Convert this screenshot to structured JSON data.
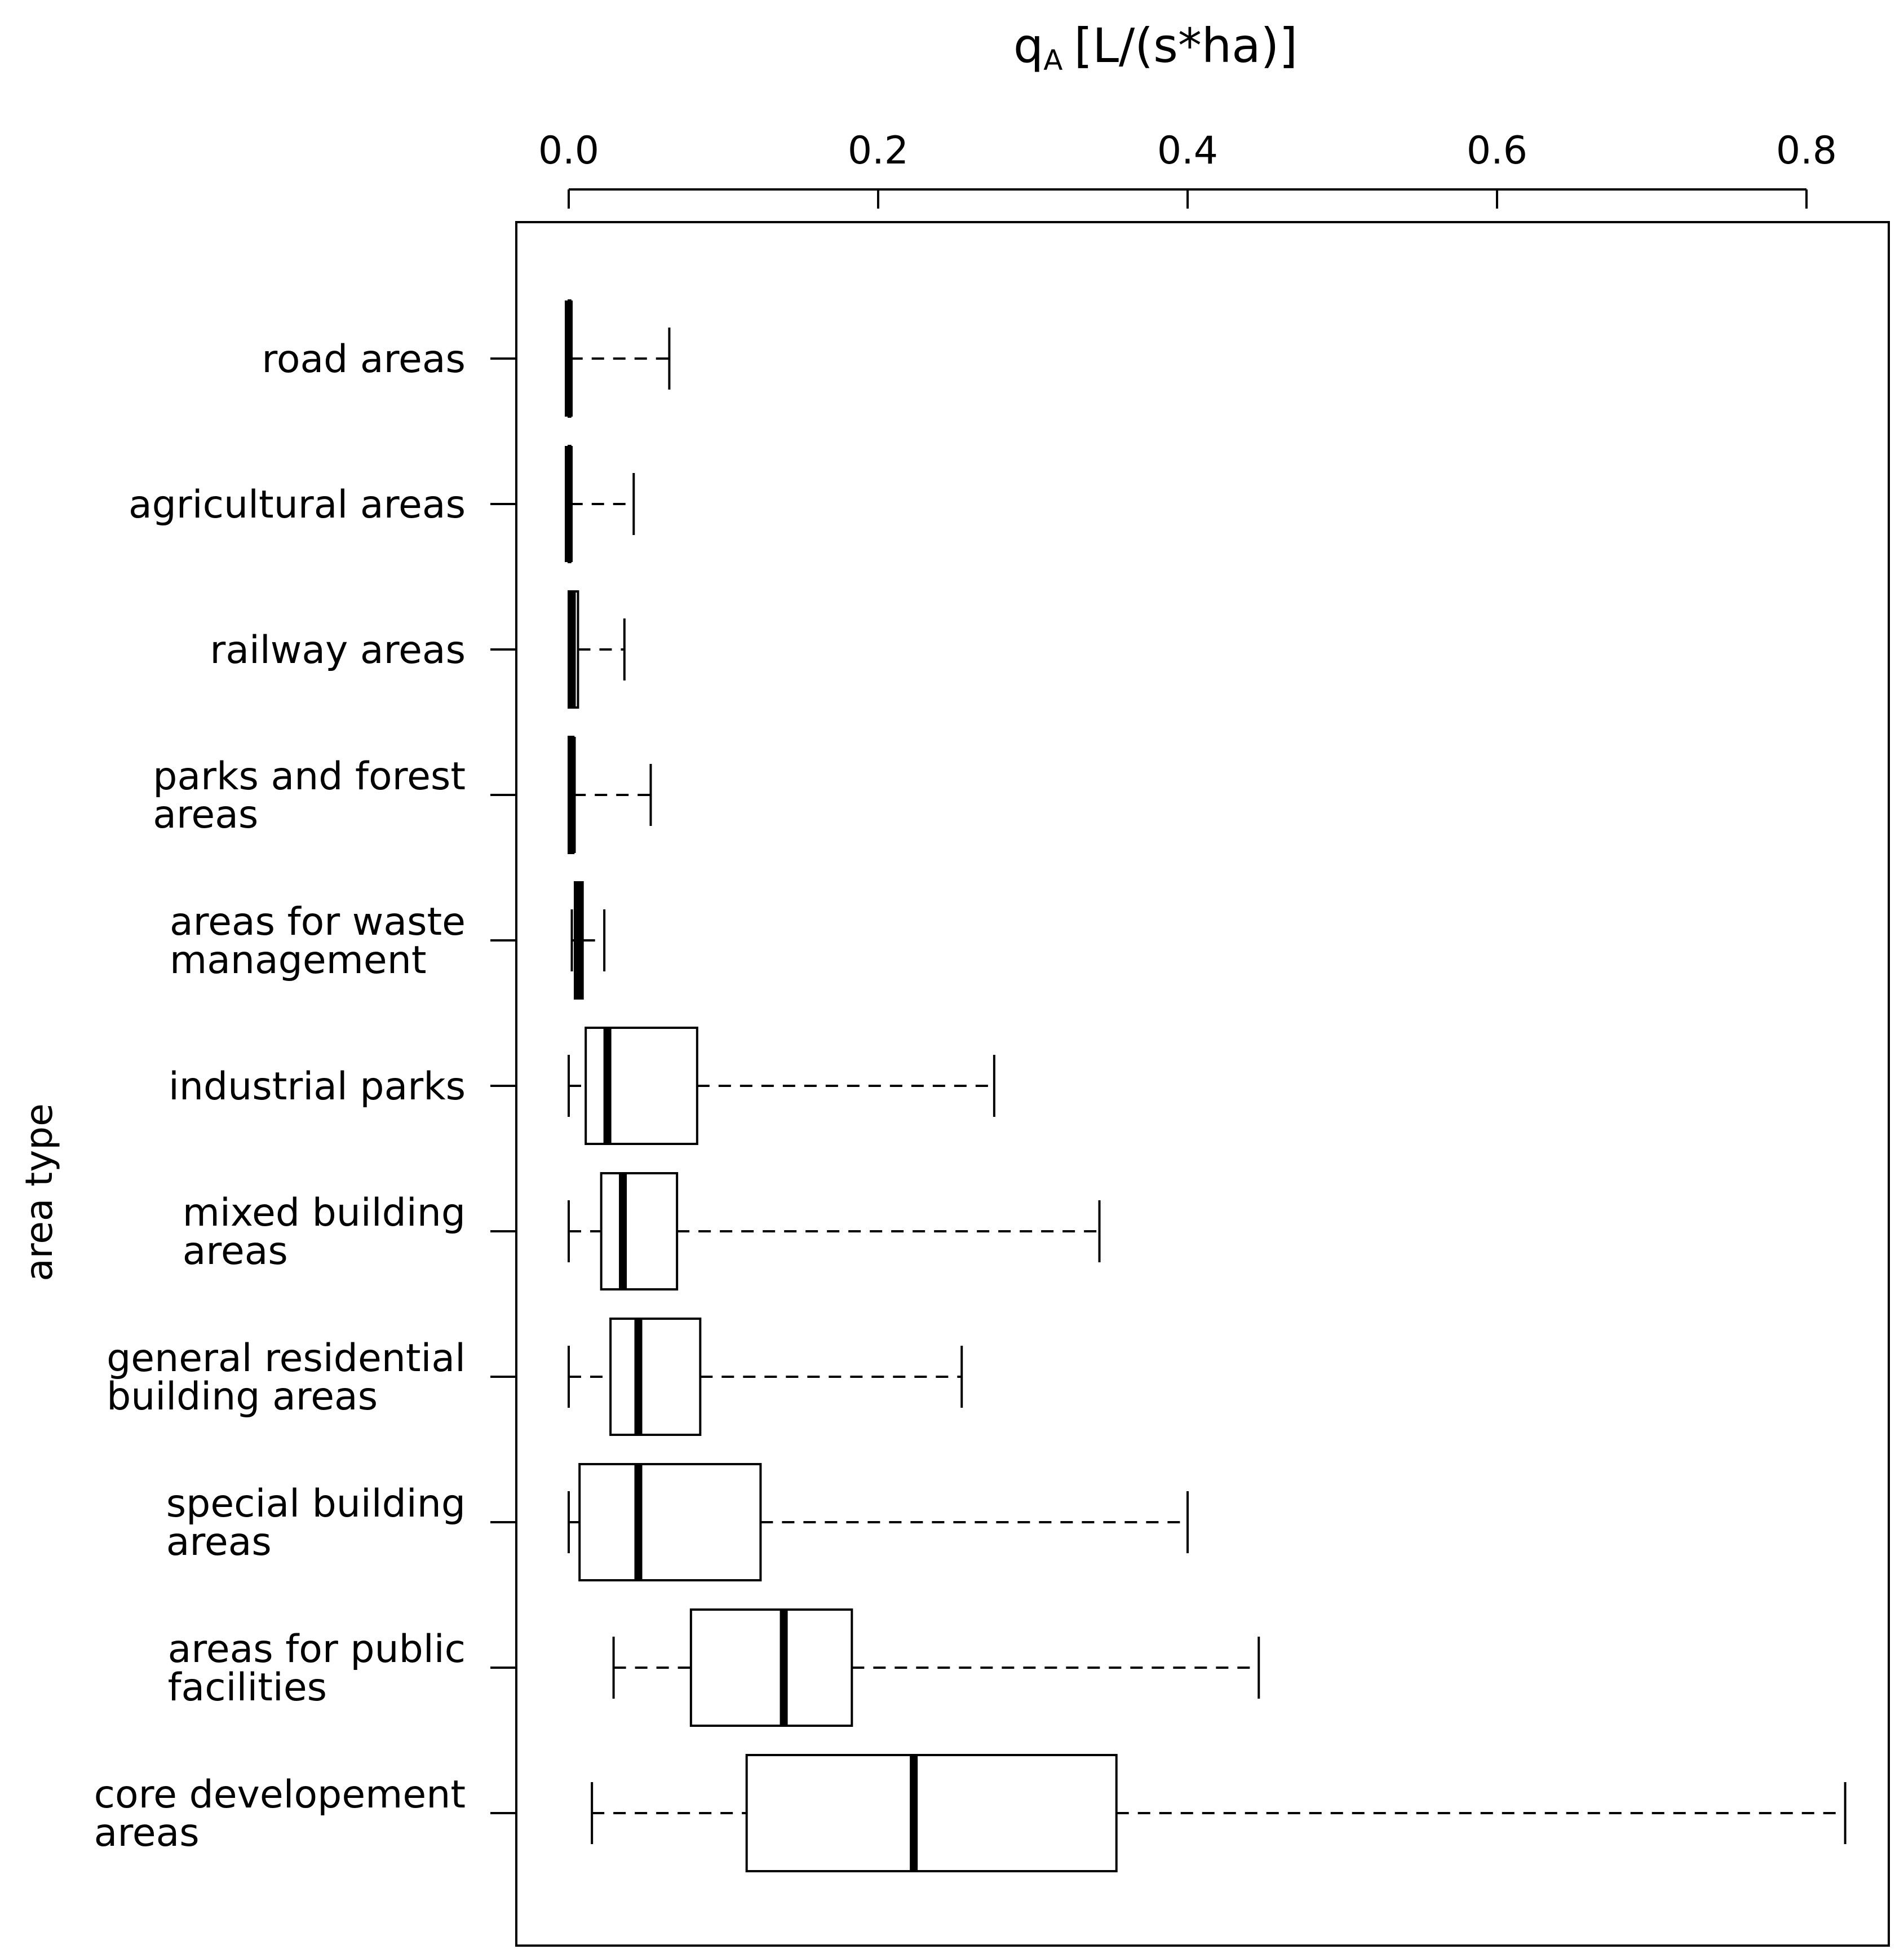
{
  "chart_data": {
    "type": "boxplot",
    "orientation": "horizontal",
    "xlabel": "q",
    "xlabel_subscript": "A",
    "xlabel_unit": "[L/(s*ha)]",
    "ylabel": "area type",
    "xlim": [
      -0.035,
      0.855
    ],
    "xticks": [
      0.0,
      0.2,
      0.4,
      0.6,
      0.8
    ],
    "xtick_labels": [
      "0.0",
      "0.2",
      "0.4",
      "0.6",
      "0.8"
    ],
    "x_axis_position": "top",
    "categories": [
      {
        "label": [
          "road areas"
        ],
        "whisker_low": 0.0,
        "q1": 0.0,
        "median": 0.0,
        "q3": 0.001,
        "whisker_high": 0.065
      },
      {
        "label": [
          "agricultural areas"
        ],
        "whisker_low": 0.0,
        "q1": 0.0,
        "median": 0.0,
        "q3": 0.001,
        "whisker_high": 0.042
      },
      {
        "label": [
          "railway areas"
        ],
        "whisker_low": 0.0,
        "q1": 0.0,
        "median": 0.002,
        "q3": 0.006,
        "whisker_high": 0.036
      },
      {
        "label": [
          "parks and forest",
          "areas"
        ],
        "whisker_low": 0.0,
        "q1": 0.0,
        "median": 0.002,
        "q3": 0.003,
        "whisker_high": 0.053
      },
      {
        "label": [
          "areas for waste",
          "management"
        ],
        "whisker_low": 0.002,
        "q1": 0.004,
        "median": 0.006,
        "q3": 0.009,
        "whisker_high": 0.023
      },
      {
        "label": [
          "industrial parks"
        ],
        "whisker_low": 0.0,
        "q1": 0.011,
        "median": 0.025,
        "q3": 0.083,
        "whisker_high": 0.275
      },
      {
        "label": [
          "mixed building",
          "areas"
        ],
        "whisker_low": 0.0,
        "q1": 0.021,
        "median": 0.035,
        "q3": 0.07,
        "whisker_high": 0.343
      },
      {
        "label": [
          "general residential",
          "building areas"
        ],
        "whisker_low": 0.0,
        "q1": 0.027,
        "median": 0.045,
        "q3": 0.085,
        "whisker_high": 0.254
      },
      {
        "label": [
          "special building",
          "areas"
        ],
        "whisker_low": 0.0,
        "q1": 0.007,
        "median": 0.045,
        "q3": 0.124,
        "whisker_high": 0.4
      },
      {
        "label": [
          "areas for public",
          "facilities"
        ],
        "whisker_low": 0.029,
        "q1": 0.079,
        "median": 0.139,
        "q3": 0.183,
        "whisker_high": 0.446
      },
      {
        "label": [
          "core developement",
          "areas"
        ],
        "whisker_low": 0.015,
        "q1": 0.115,
        "median": 0.223,
        "q3": 0.354,
        "whisker_high": 0.825
      }
    ]
  }
}
